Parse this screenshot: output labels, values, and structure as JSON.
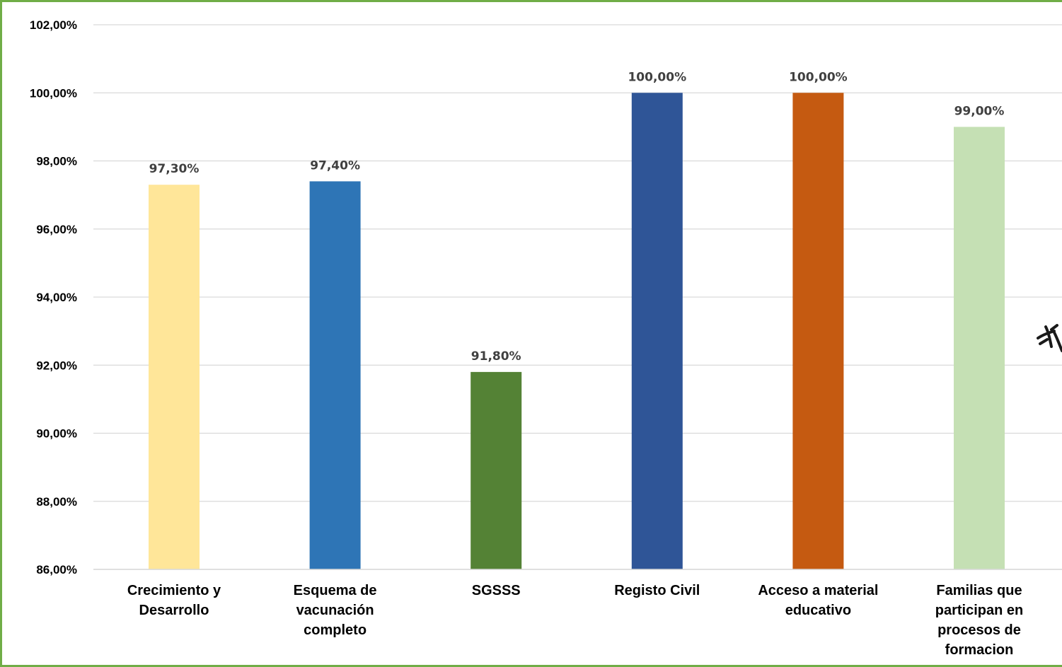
{
  "chart_data": {
    "type": "bar",
    "title": "",
    "xlabel": "",
    "ylabel": "",
    "ylim": [
      86,
      102
    ],
    "grid": true,
    "y_ticks": [
      "86,00%",
      "88,00%",
      "90,00%",
      "92,00%",
      "94,00%",
      "96,00%",
      "98,00%",
      "100,00%",
      "102,00%"
    ],
    "categories": [
      [
        "Crecimiento y",
        "Desarrollo"
      ],
      [
        "Esquema de",
        "vacunación",
        "completo"
      ],
      [
        "SGSSS"
      ],
      [
        "Registo Civil"
      ],
      [
        "Acceso a material",
        "educativo"
      ],
      [
        "Familias que",
        "participan en",
        "procesos de",
        "formacion"
      ]
    ],
    "values": [
      97.3,
      97.4,
      91.8,
      100.0,
      100.0,
      99.0
    ],
    "data_labels": [
      "97,30%",
      "97,40%",
      "91,80%",
      "100,00%",
      "100,00%",
      "99,00%"
    ],
    "colors": [
      "#FFE699",
      "#2E75B6",
      "#548235",
      "#2F5597",
      "#C55A11",
      "#C5E0B4"
    ]
  },
  "frame_color": "#70AD47",
  "gridline_color": "#D9D9D9"
}
